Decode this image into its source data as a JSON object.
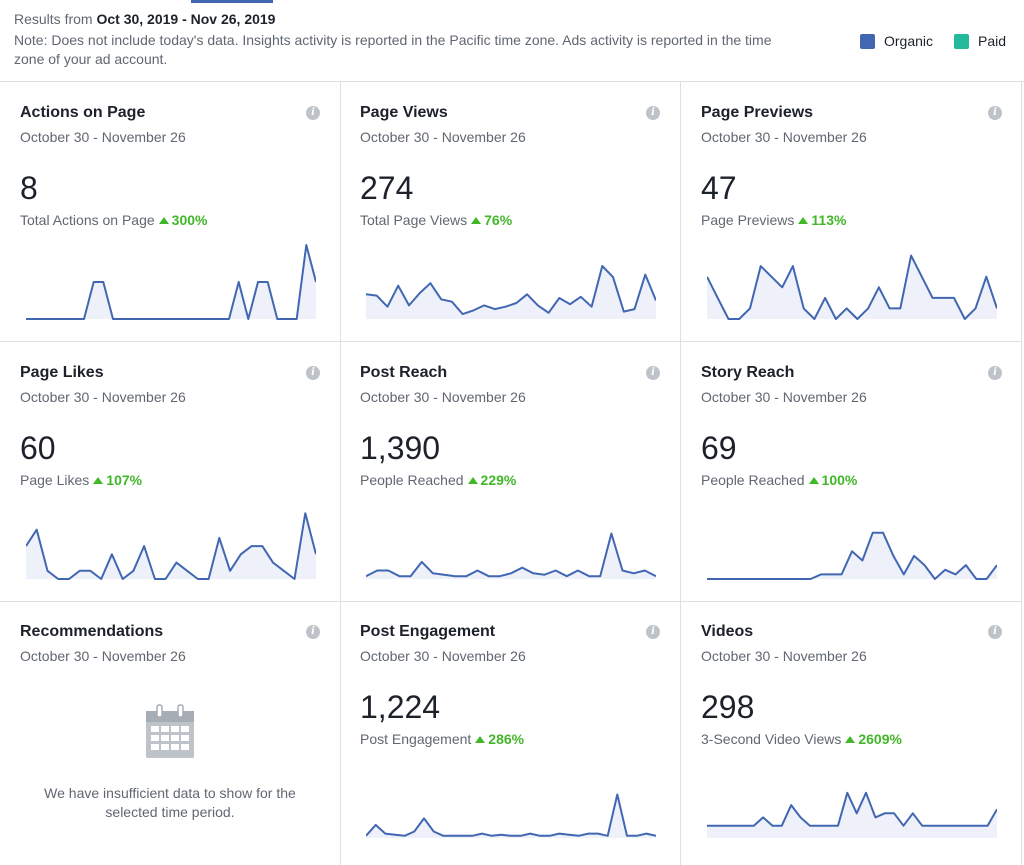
{
  "header": {
    "results_prefix": "Results from",
    "date_range": "Oct 30, 2019 - Nov 26, 2019",
    "note": "Note: Does not include today's data. Insights activity is reported in the Pacific time zone. Ads activity is reported in the time zone of your ad account."
  },
  "legend": {
    "organic": {
      "label": "Organic",
      "color": "#4267b2"
    },
    "paid": {
      "label": "Paid",
      "color": "#23b99a"
    }
  },
  "cards": [
    {
      "title": "Actions on Page",
      "date": "October 30 - November 26",
      "value": "8",
      "sub": "Total Actions on Page",
      "delta": "300%",
      "spark": [
        0,
        0,
        0,
        0,
        0,
        0,
        0,
        0.05,
        0.05,
        0,
        0,
        0,
        0,
        0,
        0,
        0,
        0,
        0,
        0,
        0,
        0,
        0,
        0.05,
        0,
        0.05,
        0.05,
        0,
        0,
        0,
        0.1,
        0.05
      ],
      "spark_max": 0.1
    },
    {
      "title": "Page Views",
      "date": "October 30 - November 26",
      "value": "274",
      "sub": "Total Page Views",
      "delta": "76%",
      "spark": [
        20,
        19,
        10,
        27,
        11,
        21,
        29,
        16,
        14,
        4,
        7,
        11,
        8,
        10,
        13,
        20,
        11,
        5,
        17,
        12,
        18,
        10,
        43,
        34,
        6,
        8,
        36,
        15
      ],
      "spark_max": 60
    },
    {
      "title": "Page Previews",
      "date": "October 30 - November 26",
      "value": "47",
      "sub": "Page Previews",
      "delta": "113%",
      "spark": [
        4,
        2,
        0,
        0,
        1,
        5,
        4,
        3,
        5,
        1,
        0,
        2,
        0,
        1,
        0,
        1,
        3,
        1,
        1,
        6,
        4,
        2,
        2,
        2,
        0,
        1,
        4,
        1
      ],
      "spark_max": 7
    },
    {
      "title": "Page Likes",
      "date": "October 30 - November 26",
      "value": "60",
      "sub": "Page Likes",
      "delta": "107%",
      "spark": [
        4,
        6,
        1,
        0,
        0,
        1,
        1,
        0,
        3,
        0,
        1,
        4,
        0,
        0,
        2,
        1,
        0,
        0,
        5,
        1,
        3,
        4,
        4,
        2,
        1,
        0,
        8,
        3
      ],
      "spark_max": 9
    },
    {
      "title": "Post Reach",
      "date": "October 30 - November 26",
      "value": "1,390",
      "sub": "People Reached",
      "delta": "229%",
      "spark": [
        1,
        3,
        3,
        1,
        1,
        6,
        2,
        1.5,
        1,
        1,
        3,
        1,
        1,
        2,
        4,
        2,
        1.5,
        3,
        1,
        3,
        1,
        1,
        16,
        3,
        2,
        3,
        1
      ],
      "spark_max": 26
    },
    {
      "title": "Story Reach",
      "date": "October 30 - November 26",
      "value": "69",
      "sub": "People Reached",
      "delta": "100%",
      "spark": [
        0,
        0,
        0,
        0,
        0,
        0,
        0,
        0,
        0,
        0,
        0,
        1,
        1,
        1,
        6,
        4,
        10,
        10,
        5,
        1,
        5,
        3,
        0,
        2,
        1,
        3,
        0,
        0,
        3
      ],
      "spark_max": 16
    },
    {
      "title": "Recommendations",
      "date": "October 30 - November 26",
      "empty_text": "We have insufficient data to show for the selected time period."
    },
    {
      "title": "Post Engagement",
      "date": "October 30 - November 26",
      "value": "1,224",
      "sub": "Post Engagement",
      "delta": "286%",
      "spark": [
        1,
        6,
        2,
        1.5,
        1,
        3,
        9,
        3,
        1,
        1,
        1,
        1,
        2,
        1,
        1.5,
        1,
        1,
        2,
        1,
        1,
        2,
        1.5,
        1,
        2,
        2,
        1,
        20,
        1,
        1,
        2,
        1
      ],
      "spark_max": 34
    },
    {
      "title": "Videos",
      "date": "October 30 - November 26",
      "value": "298",
      "sub": "3-Second Video Views",
      "delta": "2609%",
      "spark": [
        0.3,
        0.3,
        0.3,
        0.3,
        0.3,
        0.3,
        0.5,
        0.3,
        0.3,
        0.8,
        0.5,
        0.3,
        0.3,
        0.3,
        0.3,
        1.1,
        0.6,
        1.1,
        0.5,
        0.6,
        0.6,
        0.3,
        0.6,
        0.3,
        0.3,
        0.3,
        0.3,
        0.3,
        0.3,
        0.3,
        0.3,
        0.7
      ],
      "spark_max": 1.8
    }
  ]
}
